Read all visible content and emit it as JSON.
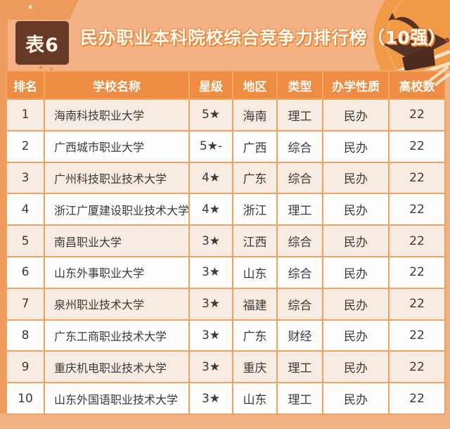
{
  "header": {
    "badge_label": "表6",
    "title": "民办职业本科院校综合竞争力排行榜（10强）"
  },
  "table": {
    "columns": [
      "排名",
      "学校名称",
      "星级",
      "地区",
      "类型",
      "办学性质",
      "高校数"
    ],
    "rows": [
      [
        "1",
        "海南科技职业大学",
        "5★",
        "海南",
        "理工",
        "民办",
        "22"
      ],
      [
        "2",
        "广西城市职业大学",
        "5★-",
        "广西",
        "综合",
        "民办",
        "22"
      ],
      [
        "3",
        "广州科技职业技术大学",
        "4★",
        "广东",
        "综合",
        "民办",
        "22"
      ],
      [
        "4",
        "浙江广厦建设职业技术大学",
        "4★",
        "浙江",
        "理工",
        "民办",
        "22"
      ],
      [
        "5",
        "南昌职业大学",
        "3★",
        "江西",
        "综合",
        "民办",
        "22"
      ],
      [
        "6",
        "山东外事职业大学",
        "3★",
        "山东",
        "综合",
        "民办",
        "22"
      ],
      [
        "7",
        "泉州职业技术大学",
        "3★",
        "福建",
        "综合",
        "民办",
        "22"
      ],
      [
        "8",
        "广东工商职业技术大学",
        "3★",
        "广东",
        "财经",
        "民办",
        "22"
      ],
      [
        "9",
        "重庆机电职业技术大学",
        "3★",
        "重庆",
        "理工",
        "民办",
        "22"
      ],
      [
        "10",
        "山东外国语职业技术大学",
        "3★",
        "山东",
        "理工",
        "民办",
        "22"
      ]
    ]
  },
  "icons": {
    "graduation_cap": "graduation-cap-icon",
    "sparkle": "sparkle-icon"
  },
  "colors": {
    "background": "#f4b184",
    "decor_dark": "#ee9c5d",
    "circle": "#f09a48",
    "header_bg": "#ee8c43",
    "cell_border": "#f0a263",
    "row_odd": "#f8ebe2",
    "row_even": "#fefdfb",
    "badge_bg": "#673a27",
    "title_outline": "#e8873c",
    "cap_brown": "#553223",
    "text": "#3a3a3a"
  }
}
